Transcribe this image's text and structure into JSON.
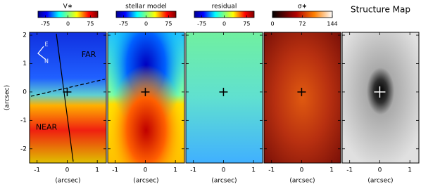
{
  "chart_data": {
    "type": "map",
    "xlim": [
      -1.25,
      1.3
    ],
    "ylim": [
      -2.5,
      2.1
    ],
    "xticks": [
      -1,
      0,
      1
    ],
    "yticks": [
      -2,
      -1,
      0,
      1,
      2
    ],
    "x_label": "(arcsec)",
    "y_label": "(arcsec)",
    "panels": [
      {
        "title": "V∗",
        "cbar_lim": [
          -100,
          100
        ],
        "cbar_ticks": [
          -75,
          0,
          75
        ],
        "annotations": [
          "E",
          "N",
          "FAR",
          "NEAR"
        ]
      },
      {
        "title": "stellar model",
        "cbar_lim": [
          -100,
          100
        ],
        "cbar_ticks": [
          -75,
          0,
          75
        ]
      },
      {
        "title": "residual",
        "cbar_lim": [
          -100,
          100
        ],
        "cbar_ticks": [
          -75,
          0,
          75
        ]
      },
      {
        "title": "σ∗",
        "cbar_lim": [
          0,
          144
        ],
        "cbar_ticks": [
          0,
          72,
          144
        ]
      },
      {
        "title": "Structure Map"
      }
    ]
  }
}
